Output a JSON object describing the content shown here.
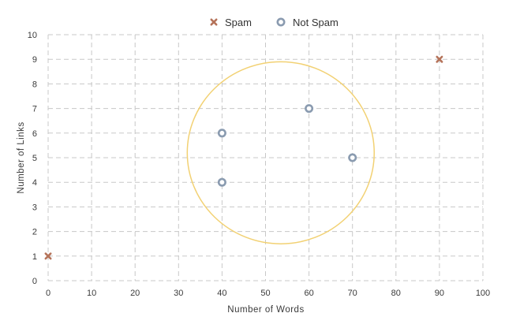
{
  "chart_data": {
    "type": "scatter",
    "title": "",
    "xlabel": "Number  of  Words",
    "ylabel": "Number  of  Links",
    "xlim": [
      0,
      100
    ],
    "ylim": [
      0,
      10
    ],
    "x_ticks": [
      0,
      10,
      20,
      30,
      40,
      50,
      60,
      70,
      80,
      90,
      100
    ],
    "y_ticks": [
      0,
      1,
      2,
      3,
      4,
      5,
      6,
      7,
      8,
      9,
      10
    ],
    "grid": true,
    "grid_style": "dashed",
    "legend_position": "top",
    "series": [
      {
        "name": "Spam",
        "marker": "x",
        "color": "#b5735a",
        "points": [
          {
            "x": 0,
            "y": 1
          },
          {
            "x": 90,
            "y": 9
          }
        ]
      },
      {
        "name": "Not Spam",
        "marker": "ring",
        "color": "#8a9bb0",
        "points": [
          {
            "x": 40,
            "y": 4
          },
          {
            "x": 40,
            "y": 6
          },
          {
            "x": 60,
            "y": 7
          },
          {
            "x": 70,
            "y": 5
          }
        ]
      }
    ],
    "annotations": [
      {
        "type": "ellipse",
        "color": "#f2d173",
        "center": {
          "x": 53.5,
          "y": 5.2
        },
        "radius_x": 21.5,
        "radius_y": 3.7
      }
    ]
  }
}
